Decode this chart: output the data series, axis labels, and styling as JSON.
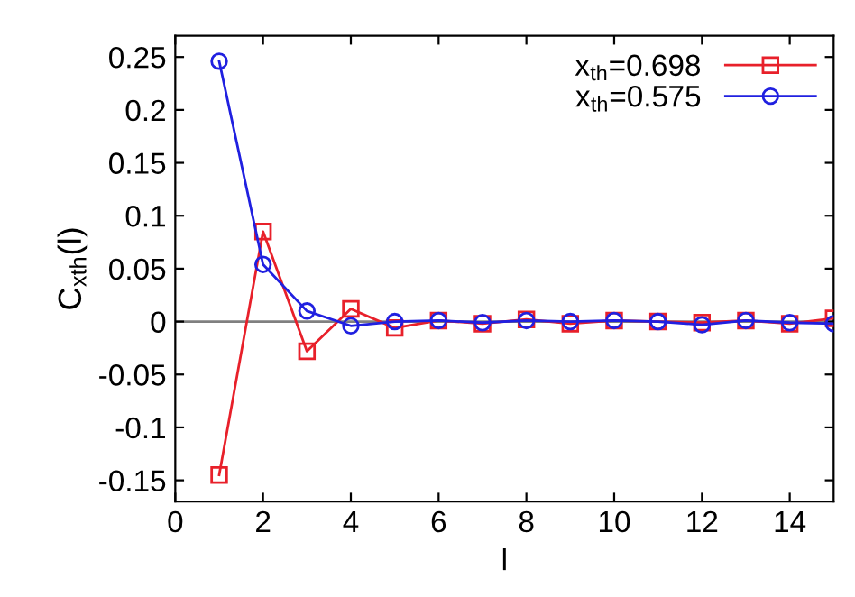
{
  "chart_data": {
    "type": "line",
    "xlabel": "l",
    "ylabel": "C$_{xth}$(l)",
    "x": [
      1,
      2,
      3,
      4,
      5,
      6,
      7,
      8,
      9,
      10,
      11,
      12,
      13,
      14,
      15
    ],
    "series": [
      {
        "name": "x$_{th}$=0.698",
        "color": "#e8202a",
        "marker": "square",
        "values": [
          -0.145,
          0.085,
          -0.028,
          0.012,
          -0.006,
          0.001,
          -0.002,
          0.002,
          -0.002,
          0.001,
          0.0,
          -0.001,
          0.001,
          -0.002,
          0.003
        ]
      },
      {
        "name": "x$_{th}$=0.575",
        "color": "#2020e0",
        "marker": "circle",
        "values": [
          0.246,
          0.054,
          0.01,
          -0.004,
          0.0,
          0.001,
          -0.001,
          0.001,
          0.0,
          0.001,
          0.0,
          -0.003,
          0.001,
          -0.001,
          -0.002
        ]
      }
    ],
    "xlim": [
      0,
      15
    ],
    "ylim": [
      -0.17,
      0.27
    ],
    "xticks": [
      0,
      2,
      4,
      6,
      8,
      10,
      12,
      14
    ],
    "yticks": [
      -0.15,
      -0.1,
      -0.05,
      0,
      0.05,
      0.1,
      0.15,
      0.2,
      0.25
    ],
    "ref_lines": [
      {
        "axis": "y",
        "value": 0,
        "color": "#808080"
      }
    ],
    "legend": "top right",
    "grid": false,
    "line_style": "solid"
  }
}
